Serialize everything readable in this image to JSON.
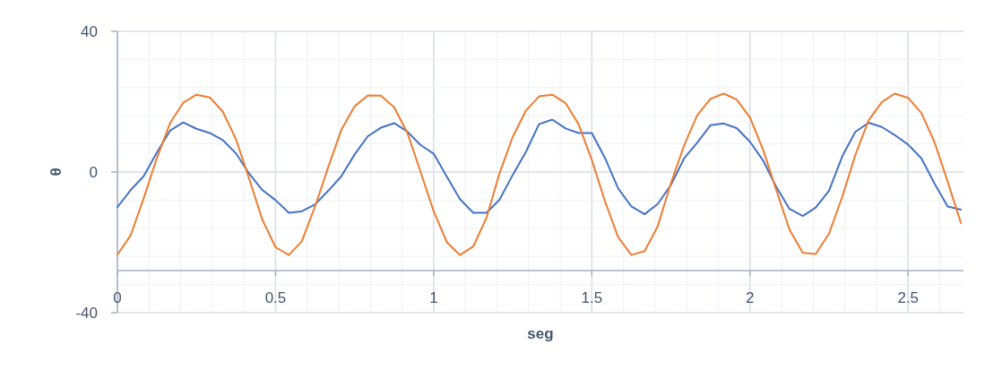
{
  "chart_data": {
    "type": "line",
    "xlabel": "seg",
    "ylabel": "θ",
    "x": [
      0,
      0.042,
      0.083,
      0.125,
      0.167,
      0.208,
      0.25,
      0.292,
      0.333,
      0.375,
      0.417,
      0.458,
      0.5,
      0.542,
      0.583,
      0.625,
      0.667,
      0.708,
      0.75,
      0.792,
      0.833,
      0.875,
      0.917,
      0.958,
      1,
      1.042,
      1.083,
      1.125,
      1.167,
      1.208,
      1.25,
      1.292,
      1.333,
      1.375,
      1.417,
      1.458,
      1.5,
      1.542,
      1.583,
      1.625,
      1.667,
      1.708,
      1.75,
      1.792,
      1.833,
      1.875,
      1.917,
      1.958,
      2,
      2.042,
      2.083,
      2.125,
      2.167,
      2.208,
      2.25,
      2.292,
      2.333,
      2.375,
      2.417,
      2.458,
      2.5,
      2.542,
      2.583,
      2.625,
      2.667
    ],
    "series": [
      {
        "color": "#4472c4",
        "values": [
          -10,
          -5.1,
          -1.2,
          5.6,
          11.8,
          14.1,
          12.3,
          11.1,
          9.1,
          5.3,
          -0.5,
          -5.1,
          -8,
          -11.6,
          -11.2,
          -9.2,
          -5.3,
          -1.2,
          5,
          10.2,
          12.6,
          13.9,
          11.5,
          7.7,
          5.2,
          -1.4,
          -7.7,
          -11.6,
          -11.6,
          -7.9,
          -0.8,
          5.8,
          13.6,
          14.9,
          12.4,
          11.1,
          11.1,
          3.9,
          -4.6,
          -9.8,
          -12,
          -9.1,
          -3.7,
          3.9,
          8.3,
          13.3,
          13.8,
          12.5,
          8.6,
          3.2,
          -4.2,
          -10.5,
          -12.5,
          -10.1,
          -5.3,
          4.5,
          11.4,
          14,
          12.8,
          10.5,
          7.8,
          3.9,
          -3.2,
          -9.8,
          -10.7
        ]
      },
      {
        "color": "#ed7d31",
        "values": [
          -23.5,
          -18,
          -7.5,
          4,
          14,
          19.7,
          22,
          21.2,
          17.2,
          9.3,
          -2,
          -13.5,
          -21.4,
          -23.6,
          -19.7,
          -9.8,
          1.5,
          12,
          18.7,
          21.8,
          21.7,
          18.4,
          11.1,
          0.2,
          -11.2,
          -20,
          -23.6,
          -21.2,
          -13,
          -0.4,
          10,
          17.5,
          21.5,
          22,
          19.6,
          13.6,
          3.4,
          -8.4,
          -18.5,
          -23.6,
          -22.5,
          -15.5,
          -3.2,
          7.6,
          16.1,
          20.8,
          22.3,
          20.6,
          15.5,
          6.2,
          -5.1,
          -16.4,
          -23,
          -23.3,
          -17.5,
          -7,
          4.8,
          14.7,
          19.9,
          22.3,
          21.1,
          16.8,
          8.6,
          -2.7,
          -14.5
        ]
      }
    ],
    "xlim": [
      0,
      2.675
    ],
    "ylim": [
      -40,
      40
    ],
    "xticks": [
      0,
      {
        "value": 0.1,
        "label": null
      },
      {
        "value": 0.2,
        "label": null
      },
      {
        "value": 0.3,
        "label": null
      },
      {
        "value": 0.4,
        "label": null
      },
      0.5,
      {
        "value": 0.6,
        "label": null
      },
      {
        "value": 0.7,
        "label": null
      },
      {
        "value": 0.8,
        "label": null
      },
      {
        "value": 0.9,
        "label": null
      },
      1,
      {
        "value": 1.1,
        "label": null
      },
      {
        "value": 1.2,
        "label": null
      },
      {
        "value": 1.3,
        "label": null
      },
      {
        "value": 1.4,
        "label": null
      },
      1.5,
      {
        "value": 1.6,
        "label": null
      },
      {
        "value": 1.7,
        "label": null
      },
      {
        "value": 1.8,
        "label": null
      },
      {
        "value": 1.9,
        "label": null
      },
      2,
      {
        "value": 2.1,
        "label": null
      },
      {
        "value": 2.2,
        "label": null
      },
      {
        "value": 2.3,
        "label": null
      },
      {
        "value": 2.4,
        "label": null
      },
      2.5,
      {
        "value": 2.6,
        "label": null
      }
    ],
    "yticks": [
      -40,
      {
        "value": -32,
        "label": null
      },
      {
        "value": -24,
        "label": null
      },
      {
        "value": -16,
        "label": null
      },
      {
        "value": -8,
        "label": null
      },
      0,
      {
        "value": 8,
        "label": null
      },
      {
        "value": 16,
        "label": null
      },
      {
        "value": 24,
        "label": null
      },
      {
        "value": 32,
        "label": null
      },
      40
    ],
    "ref_lines": [
      {
        "axis": "y",
        "value": -28,
        "color": "#a6b0c3"
      }
    ],
    "grid": true,
    "marker": "none",
    "line_style": "solid"
  }
}
